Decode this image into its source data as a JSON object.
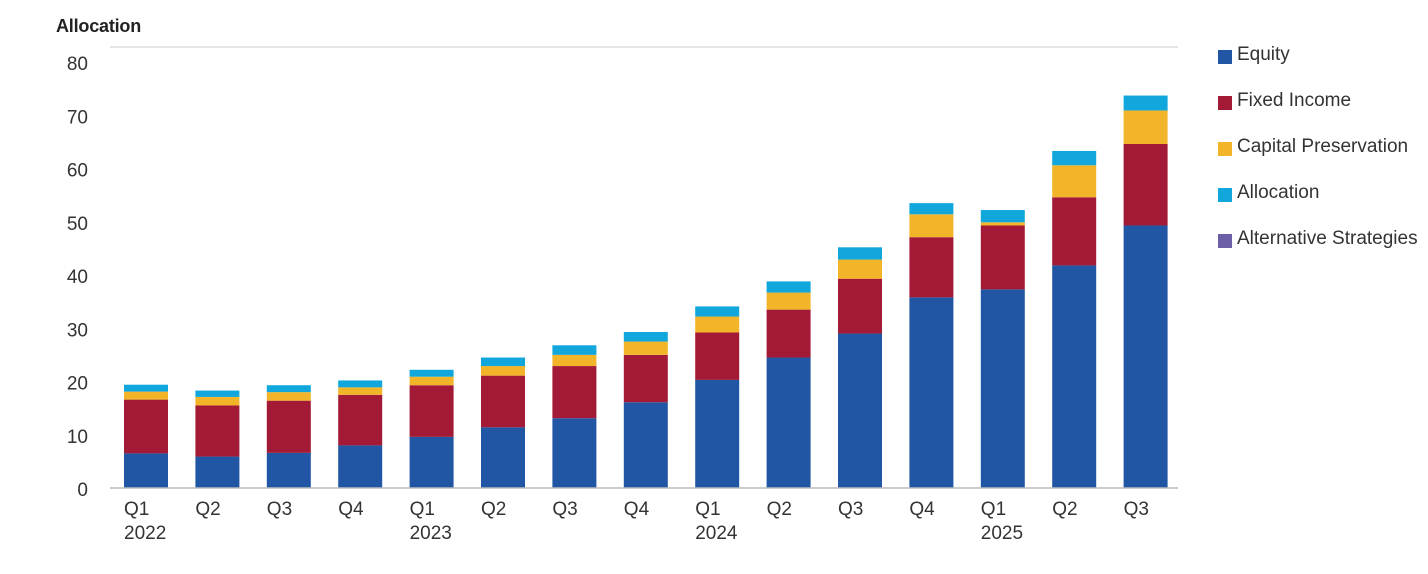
{
  "chart_data": {
    "type": "bar",
    "stacked": true,
    "title": "",
    "ylabel": "Allocation",
    "xlabel": "",
    "ylim": [
      0,
      80
    ],
    "yticks": [
      0,
      10,
      20,
      30,
      40,
      50,
      60,
      70,
      80
    ],
    "grid": false,
    "legend": "right",
    "categories": [
      {
        "quarter": "Q1",
        "year": "2022"
      },
      {
        "quarter": "Q2",
        "year": ""
      },
      {
        "quarter": "Q3",
        "year": ""
      },
      {
        "quarter": "Q4",
        "year": ""
      },
      {
        "quarter": "Q1",
        "year": "2023"
      },
      {
        "quarter": "Q2",
        "year": ""
      },
      {
        "quarter": "Q3",
        "year": ""
      },
      {
        "quarter": "Q4",
        "year": ""
      },
      {
        "quarter": "Q1",
        "year": "2024"
      },
      {
        "quarter": "Q2",
        "year": ""
      },
      {
        "quarter": "Q3",
        "year": ""
      },
      {
        "quarter": "Q4",
        "year": ""
      },
      {
        "quarter": "Q1",
        "year": "2025"
      },
      {
        "quarter": "Q2",
        "year": ""
      },
      {
        "quarter": "Q3",
        "year": ""
      }
    ],
    "series": [
      {
        "name": "Equity",
        "color": "#2156a5",
        "values": [
          6.5,
          5.9,
          6.6,
          8.0,
          9.6,
          11.4,
          13.1,
          16.1,
          20.3,
          24.5,
          29.0,
          35.8,
          37.3,
          41.8,
          49.3
        ]
      },
      {
        "name": "Fixed Income",
        "color": "#a31a36",
        "values": [
          10.1,
          9.6,
          9.8,
          9.5,
          9.7,
          9.7,
          9.8,
          8.9,
          8.9,
          9.0,
          10.3,
          11.3,
          12.0,
          12.8,
          15.3
        ]
      },
      {
        "name": "Capital Preservation",
        "color": "#f2b52a",
        "values": [
          1.5,
          1.6,
          1.6,
          1.4,
          1.6,
          1.8,
          2.1,
          2.5,
          3.0,
          3.2,
          3.6,
          4.3,
          0.6,
          6.0,
          6.3
        ]
      },
      {
        "name": "Allocation",
        "color": "#11a7dd",
        "values": [
          1.3,
          1.2,
          1.3,
          1.3,
          1.3,
          1.6,
          1.8,
          1.8,
          1.9,
          2.1,
          2.3,
          2.1,
          2.3,
          2.7,
          2.8
        ]
      },
      {
        "name": "Alternative Strategies",
        "color": "#6c5fa7",
        "values": [
          0,
          0,
          0,
          0,
          0,
          0,
          0,
          0,
          0,
          0,
          0,
          0,
          0,
          0,
          0
        ]
      }
    ]
  }
}
